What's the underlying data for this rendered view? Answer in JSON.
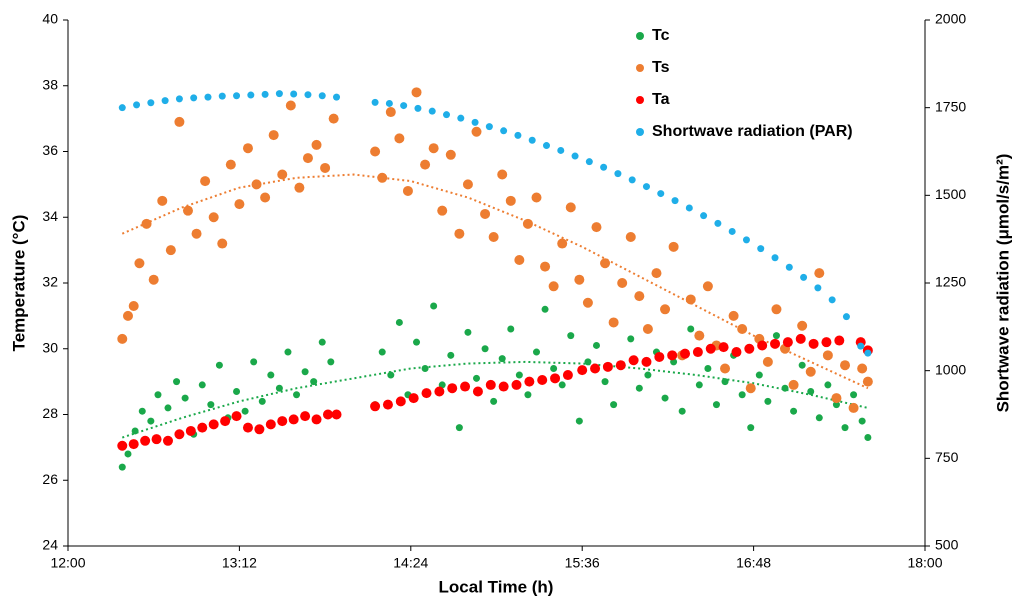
{
  "chart_data": {
    "type": "scatter",
    "xlabel": "Local Time (h)",
    "ylabel": "Temperature (°C)",
    "y2label": "Shortwave radiation (μmol/s/m²)",
    "xlim": [
      12,
      18
    ],
    "xticks": [
      {
        "value": 12,
        "label": "12:00"
      },
      {
        "value": 13.2,
        "label": "13:12"
      },
      {
        "value": 14.4,
        "label": "14:24"
      },
      {
        "value": 15.6,
        "label": "15:36"
      },
      {
        "value": 16.8,
        "label": "16:48"
      },
      {
        "value": 18,
        "label": "18:00"
      }
    ],
    "ylim": [
      24,
      40
    ],
    "yticks": [
      24,
      26,
      28,
      30,
      32,
      34,
      36,
      38,
      40
    ],
    "y2lim": [
      500,
      2000
    ],
    "y2ticks": [
      500,
      750,
      1000,
      1250,
      1500,
      1750,
      2000
    ],
    "legend": "upper right",
    "series": [
      {
        "name": "Tc",
        "color": "#1aa84a",
        "x": [
          12.38,
          12.42,
          12.47,
          12.52,
          12.58,
          12.63,
          12.7,
          12.76,
          12.82,
          12.88,
          12.94,
          13.0,
          13.06,
          13.12,
          13.18,
          13.24,
          13.3,
          13.36,
          13.42,
          13.48,
          13.54,
          13.6,
          13.66,
          13.72,
          13.78,
          13.84,
          14.15,
          14.2,
          14.26,
          14.32,
          14.38,
          14.44,
          14.5,
          14.56,
          14.62,
          14.68,
          14.74,
          14.8,
          14.86,
          14.92,
          14.98,
          15.04,
          15.1,
          15.16,
          15.22,
          15.28,
          15.34,
          15.4,
          15.46,
          15.52,
          15.58,
          15.64,
          15.7,
          15.76,
          15.82,
          15.88,
          15.94,
          16.0,
          16.06,
          16.12,
          16.18,
          16.24,
          16.3,
          16.36,
          16.42,
          16.48,
          16.54,
          16.6,
          16.66,
          16.72,
          16.78,
          16.84,
          16.9,
          16.96,
          17.02,
          17.08,
          17.14,
          17.2,
          17.26,
          17.32,
          17.38,
          17.44,
          17.5,
          17.56,
          17.6
        ],
        "values": [
          26.4,
          26.8,
          27.5,
          28.1,
          27.8,
          28.6,
          28.2,
          29.0,
          28.5,
          27.4,
          28.9,
          28.3,
          29.5,
          27.9,
          28.7,
          28.1,
          29.6,
          28.4,
          29.2,
          28.8,
          29.9,
          28.6,
          29.3,
          29.0,
          30.2,
          29.6,
          28.3,
          29.9,
          29.2,
          30.8,
          28.6,
          30.2,
          29.4,
          31.3,
          28.9,
          29.8,
          27.6,
          30.5,
          29.1,
          30.0,
          28.4,
          29.7,
          30.6,
          29.2,
          28.6,
          29.9,
          31.2,
          29.4,
          28.9,
          30.4,
          27.8,
          29.6,
          30.1,
          29.0,
          28.3,
          29.5,
          30.3,
          28.8,
          29.2,
          29.9,
          28.5,
          29.6,
          28.1,
          30.6,
          28.9,
          29.4,
          28.3,
          29.0,
          29.8,
          28.6,
          27.6,
          29.2,
          28.4,
          30.4,
          28.8,
          28.1,
          29.5,
          28.7,
          27.9,
          28.9,
          28.3,
          27.6,
          28.6,
          27.8,
          27.3
        ]
      },
      {
        "name": "Ts",
        "color": "#ed7d31",
        "x": [
          12.38,
          12.42,
          12.46,
          12.5,
          12.55,
          12.6,
          12.66,
          12.72,
          12.78,
          12.84,
          12.9,
          12.96,
          13.02,
          13.08,
          13.14,
          13.2,
          13.26,
          13.32,
          13.38,
          13.44,
          13.5,
          13.56,
          13.62,
          13.68,
          13.74,
          13.8,
          13.86,
          14.15,
          14.2,
          14.26,
          14.32,
          14.38,
          14.44,
          14.5,
          14.56,
          14.62,
          14.68,
          14.74,
          14.8,
          14.86,
          14.92,
          14.98,
          15.04,
          15.1,
          15.16,
          15.22,
          15.28,
          15.34,
          15.4,
          15.46,
          15.52,
          15.58,
          15.64,
          15.7,
          15.76,
          15.82,
          15.88,
          15.94,
          16.0,
          16.06,
          16.12,
          16.18,
          16.24,
          16.3,
          16.36,
          16.42,
          16.48,
          16.54,
          16.6,
          16.66,
          16.72,
          16.78,
          16.84,
          16.9,
          16.96,
          17.02,
          17.08,
          17.14,
          17.2,
          17.26,
          17.32,
          17.38,
          17.44,
          17.5,
          17.56,
          17.6
        ],
        "values": [
          30.3,
          31.0,
          31.3,
          32.6,
          33.8,
          32.1,
          34.5,
          33.0,
          36.9,
          34.2,
          33.5,
          35.1,
          34.0,
          33.2,
          35.6,
          34.4,
          36.1,
          35.0,
          34.6,
          36.5,
          35.3,
          37.4,
          34.9,
          35.8,
          36.2,
          35.5,
          37.0,
          36.0,
          35.2,
          37.2,
          36.4,
          34.8,
          37.8,
          35.6,
          36.1,
          34.2,
          35.9,
          33.5,
          35.0,
          36.6,
          34.1,
          33.4,
          35.3,
          34.5,
          32.7,
          33.8,
          34.6,
          32.5,
          31.9,
          33.2,
          34.3,
          32.1,
          31.4,
          33.7,
          32.6,
          30.8,
          32.0,
          33.4,
          31.6,
          30.6,
          32.3,
          31.2,
          33.1,
          29.8,
          31.5,
          30.4,
          31.9,
          30.1,
          29.4,
          31.0,
          30.6,
          28.8,
          30.3,
          29.6,
          31.2,
          30.0,
          28.9,
          30.7,
          29.3,
          32.3,
          29.8,
          28.5,
          29.5,
          28.2,
          29.4,
          29.0
        ]
      },
      {
        "name": "Ta",
        "color": "#ff0000",
        "x": [
          12.38,
          12.46,
          12.54,
          12.62,
          12.7,
          12.78,
          12.86,
          12.94,
          13.02,
          13.1,
          13.18,
          13.26,
          13.34,
          13.42,
          13.5,
          13.58,
          13.66,
          13.74,
          13.82,
          13.88,
          14.15,
          14.24,
          14.33,
          14.42,
          14.51,
          14.6,
          14.69,
          14.78,
          14.87,
          14.96,
          15.05,
          15.14,
          15.23,
          15.32,
          15.41,
          15.5,
          15.6,
          15.69,
          15.78,
          15.87,
          15.96,
          16.05,
          16.14,
          16.23,
          16.32,
          16.41,
          16.5,
          16.59,
          16.68,
          16.77,
          16.86,
          16.95,
          17.04,
          17.13,
          17.22,
          17.31,
          17.4,
          17.55,
          17.6
        ],
        "values": [
          27.05,
          27.1,
          27.2,
          27.25,
          27.2,
          27.4,
          27.5,
          27.6,
          27.7,
          27.8,
          27.95,
          27.6,
          27.55,
          27.7,
          27.8,
          27.85,
          27.95,
          27.85,
          28.0,
          28.0,
          28.25,
          28.3,
          28.4,
          28.5,
          28.65,
          28.7,
          28.8,
          28.85,
          28.7,
          28.9,
          28.85,
          28.9,
          29.0,
          29.05,
          29.1,
          29.2,
          29.35,
          29.4,
          29.45,
          29.5,
          29.65,
          29.6,
          29.75,
          29.8,
          29.85,
          29.9,
          30.0,
          30.05,
          29.9,
          30.0,
          30.1,
          30.15,
          30.2,
          30.3,
          30.15,
          30.2,
          30.25,
          30.2,
          29.95
        ]
      },
      {
        "name": "Shortwave radiation (PAR)",
        "color": "#1faee8",
        "axis": "y2",
        "x": [
          12.38,
          12.48,
          12.58,
          12.68,
          12.78,
          12.88,
          12.98,
          13.08,
          13.18,
          13.28,
          13.38,
          13.48,
          13.58,
          13.68,
          13.78,
          13.88,
          14.15,
          14.25,
          14.35,
          14.45,
          14.55,
          14.65,
          14.75,
          14.85,
          14.95,
          15.05,
          15.15,
          15.25,
          15.35,
          15.45,
          15.55,
          15.65,
          15.75,
          15.85,
          15.95,
          16.05,
          16.15,
          16.25,
          16.35,
          16.45,
          16.55,
          16.65,
          16.75,
          16.85,
          16.95,
          17.05,
          17.15,
          17.25,
          17.35,
          17.45,
          17.55,
          17.6
        ],
        "values": [
          1750,
          1758,
          1764,
          1770,
          1775,
          1778,
          1780,
          1783,
          1784,
          1786,
          1788,
          1790,
          1789,
          1787,
          1784,
          1780,
          1765,
          1762,
          1756,
          1748,
          1740,
          1730,
          1720,
          1708,
          1696,
          1684,
          1671,
          1657,
          1642,
          1628,
          1612,
          1596,
          1580,
          1562,
          1544,
          1525,
          1505,
          1485,
          1464,
          1442,
          1420,
          1397,
          1373,
          1348,
          1322,
          1295,
          1266,
          1236,
          1202,
          1154,
          1070,
          1050
        ]
      }
    ],
    "trendlines": [
      {
        "color": "#1aa84a",
        "x": [
          12.38,
          12.8,
          13.2,
          13.6,
          14.0,
          14.4,
          14.8,
          15.2,
          15.6,
          16.0,
          16.4,
          16.8,
          17.2,
          17.6
        ],
        "values": [
          27.3,
          27.9,
          28.4,
          28.8,
          29.1,
          29.4,
          29.55,
          29.6,
          29.55,
          29.4,
          29.2,
          28.95,
          28.6,
          28.2
        ]
      },
      {
        "color": "#ed7d31",
        "x": [
          12.38,
          12.8,
          13.2,
          13.6,
          14.0,
          14.4,
          14.8,
          15.2,
          15.6,
          16.0,
          16.4,
          16.8,
          17.2,
          17.6
        ],
        "values": [
          33.5,
          34.3,
          34.9,
          35.2,
          35.3,
          35.1,
          34.6,
          33.9,
          33.1,
          32.2,
          31.3,
          30.4,
          29.6,
          28.8
        ]
      }
    ]
  }
}
